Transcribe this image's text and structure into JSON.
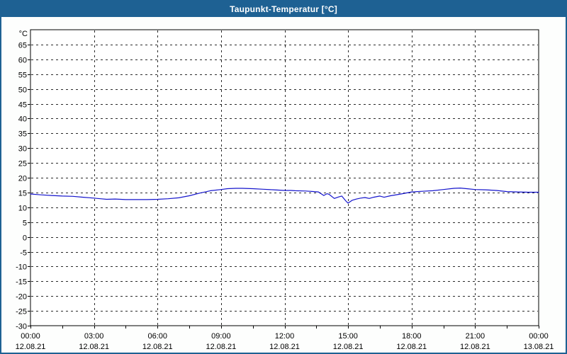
{
  "window": {
    "title": "Taupunkt-Temperatur [°C]"
  },
  "colors": {
    "titlebar_bg": "#1e6193",
    "titlebar_text": "#ffffff",
    "frame_border": "#1e6193",
    "plot_border": "#000000",
    "grid": "#2a2a2a",
    "tick_text": "#000000",
    "line": "#1414cc",
    "plot_bg": "#ffffff"
  },
  "chart_data": {
    "type": "line",
    "title": "Taupunkt-Temperatur [°C]",
    "series_name": "Taupunkt-Temperatur",
    "unit_label": "°C",
    "xlabel": "",
    "ylabel": "°C",
    "xlim_hours": [
      0,
      24
    ],
    "ylim": [
      -30,
      70
    ],
    "grid": "dashed",
    "legend": "none",
    "y_ticks": [
      65,
      60,
      55,
      50,
      45,
      40,
      35,
      30,
      25,
      20,
      15,
      10,
      5,
      0,
      -5,
      -10,
      -15,
      -20,
      -25,
      -30
    ],
    "x_ticks": [
      {
        "hour": 0,
        "time": "00:00",
        "date": "12.08.21"
      },
      {
        "hour": 3,
        "time": "03:00",
        "date": "12.08.21"
      },
      {
        "hour": 6,
        "time": "06:00",
        "date": "12.08.21"
      },
      {
        "hour": 9,
        "time": "09:00",
        "date": "12.08.21"
      },
      {
        "hour": 12,
        "time": "12:00",
        "date": "12.08.21"
      },
      {
        "hour": 15,
        "time": "15:00",
        "date": "12.08.21"
      },
      {
        "hour": 18,
        "time": "18:00",
        "date": "12.08.21"
      },
      {
        "hour": 21,
        "time": "21:00",
        "date": "12.08.21"
      },
      {
        "hour": 24,
        "time": "00:00",
        "date": "13.08.21"
      }
    ],
    "minor_tick_interval_hours": 1.5,
    "points": [
      [
        0,
        14.5
      ],
      [
        0.5,
        14.2
      ],
      [
        1,
        14.0
      ],
      [
        1.5,
        13.8
      ],
      [
        2,
        13.7
      ],
      [
        2.5,
        13.4
      ],
      [
        3,
        13.1
      ],
      [
        3.3,
        12.9
      ],
      [
        3.6,
        12.7
      ],
      [
        4,
        12.8
      ],
      [
        4.5,
        12.6
      ],
      [
        5,
        12.6
      ],
      [
        5.5,
        12.6
      ],
      [
        6,
        12.7
      ],
      [
        6.5,
        12.9
      ],
      [
        7,
        13.2
      ],
      [
        7.5,
        13.9
      ],
      [
        8,
        14.8
      ],
      [
        8.5,
        15.6
      ],
      [
        9,
        16.0
      ],
      [
        9.3,
        16.3
      ],
      [
        9.7,
        16.4
      ],
      [
        10,
        16.4
      ],
      [
        10.5,
        16.3
      ],
      [
        11,
        16.1
      ],
      [
        11.5,
        15.9
      ],
      [
        12,
        15.7
      ],
      [
        12.3,
        15.7
      ],
      [
        12.5,
        15.6
      ],
      [
        13,
        15.5
      ],
      [
        13.4,
        15.3
      ],
      [
        13.6,
        15.2
      ],
      [
        13.85,
        14.0
      ],
      [
        14.0,
        14.6
      ],
      [
        14.1,
        14.4
      ],
      [
        14.35,
        13.0
      ],
      [
        14.55,
        13.5
      ],
      [
        14.7,
        13.8
      ],
      [
        14.9,
        12.1
      ],
      [
        15.0,
        11.4
      ],
      [
        15.2,
        12.4
      ],
      [
        15.4,
        12.8
      ],
      [
        15.6,
        13.1
      ],
      [
        15.8,
        13.3
      ],
      [
        16.0,
        13.0
      ],
      [
        16.2,
        13.4
      ],
      [
        16.5,
        13.8
      ],
      [
        16.7,
        13.4
      ],
      [
        17,
        13.9
      ],
      [
        17.5,
        14.5
      ],
      [
        18,
        15.2
      ],
      [
        18.5,
        15.4
      ],
      [
        19,
        15.6
      ],
      [
        19.5,
        16.0
      ],
      [
        20,
        16.4
      ],
      [
        20.3,
        16.5
      ],
      [
        20.6,
        16.3
      ],
      [
        21,
        16.0
      ],
      [
        21.5,
        15.9
      ],
      [
        22,
        15.7
      ],
      [
        22.5,
        15.3
      ],
      [
        23,
        15.2
      ],
      [
        23.5,
        15.1
      ],
      [
        24,
        15.1
      ]
    ]
  }
}
